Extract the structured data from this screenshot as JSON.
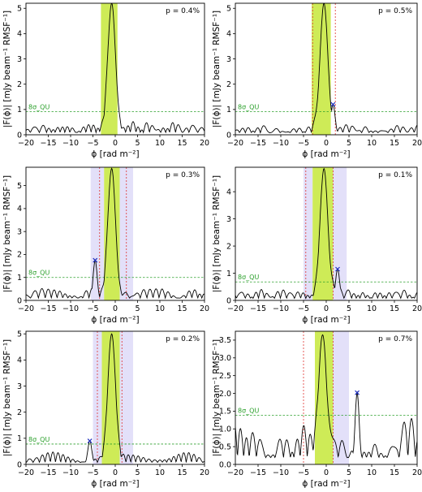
{
  "chart_data": [
    {
      "type": "line",
      "xlabel": "ϕ [rad m⁻²]",
      "ylabel": "|F(ϕ)| [mJy beam⁻¹ RMSF⁻¹]",
      "xlim": [
        -20,
        20
      ],
      "ylim": [
        0,
        5.2
      ],
      "x_ticks": [
        "−20",
        "−15",
        "−10",
        "−5",
        "0",
        "5",
        "10",
        "15",
        "20"
      ],
      "y_ticks": [
        "0",
        "1",
        "2",
        "3",
        "4",
        "5"
      ],
      "y_tick_values": [
        0,
        1,
        2,
        3,
        4,
        5
      ],
      "annotation": "p = 0.4%",
      "threshold_label": "8σ_QU",
      "threshold": 0.92,
      "peak": {
        "x": -0.8,
        "y": 5.2,
        "width": 0.9
      },
      "green_band": [
        -3.2,
        0.5
      ],
      "purple_bands": [],
      "red_lines": [],
      "markers": [],
      "noise_level": 0.35,
      "seed": 3
    },
    {
      "type": "line",
      "xlabel": "ϕ [rad m⁻²]",
      "ylabel": "|F(ϕ)| [mJy beam⁻¹ RMSF⁻¹]",
      "xlim": [
        -20,
        20
      ],
      "ylim": [
        0,
        5.2
      ],
      "x_ticks": [
        "−20",
        "−15",
        "−10",
        "−5",
        "0",
        "5",
        "10",
        "15",
        "20"
      ],
      "y_ticks": [
        "0",
        "1",
        "2",
        "3",
        "4",
        "5"
      ],
      "y_tick_values": [
        0,
        1,
        2,
        3,
        4,
        5
      ],
      "annotation": "p = 0.5%",
      "threshold_label": "8σ_QU",
      "threshold": 0.92,
      "peak": {
        "x": -0.5,
        "y": 5.2,
        "width": 0.9
      },
      "green_band": [
        -3.2,
        1.0
      ],
      "purple_bands": [],
      "red_lines": [
        -3.0,
        2.0
      ],
      "markers": [
        {
          "x": 1.5,
          "y": 1.2
        }
      ],
      "noise_level": 0.32,
      "seed": 7
    },
    {
      "type": "line",
      "xlabel": "ϕ [rad m⁻²]",
      "ylabel": "|F(ϕ)| [mJy beam⁻¹ RMSF⁻¹]",
      "xlim": [
        -20,
        20
      ],
      "ylim": [
        0,
        5.8
      ],
      "x_ticks": [
        "−20",
        "−15",
        "−10",
        "−5",
        "0",
        "5",
        "10",
        "15",
        "20"
      ],
      "y_ticks": [
        "0",
        "1",
        "2",
        "3",
        "4",
        "5"
      ],
      "y_tick_values": [
        0,
        1,
        2,
        3,
        4,
        5
      ],
      "annotation": "p = 0.3%",
      "threshold_label": "8σ_QU",
      "threshold": 1.0,
      "peak": {
        "x": -0.8,
        "y": 5.75,
        "width": 0.9
      },
      "green_band": [
        -2.5,
        1.0
      ],
      "purple_bands": [
        [
          -5.5,
          -2.5
        ],
        [
          1.0,
          4.0
        ]
      ],
      "red_lines": [
        -3.5,
        2.5
      ],
      "markers": [
        {
          "x": -4.5,
          "y": 1.75
        }
      ],
      "noise_level": 0.4,
      "seed": 11
    },
    {
      "type": "line",
      "xlabel": "ϕ [rad m⁻²]",
      "ylabel": "|F(ϕ)| [mJy beam⁻¹ RMSF⁻¹]",
      "xlim": [
        -20,
        20
      ],
      "ylim": [
        0,
        4.9
      ],
      "x_ticks": [
        "−20",
        "−15",
        "−10",
        "−5",
        "0",
        "5",
        "10",
        "15",
        "20"
      ],
      "y_ticks": [
        "0",
        "1",
        "2",
        "3",
        "4"
      ],
      "y_tick_values": [
        0,
        1,
        2,
        3,
        4
      ],
      "annotation": "p = 0.1%",
      "threshold_label": "8σ_QU",
      "threshold": 0.68,
      "peak": {
        "x": -0.5,
        "y": 4.85,
        "width": 0.9
      },
      "green_band": [
        -3.0,
        1.5
      ],
      "purple_bands": [
        [
          -5.0,
          -3.0
        ],
        [
          1.5,
          4.5
        ]
      ],
      "red_lines": [
        -4.5,
        1.5
      ],
      "markers": [
        {
          "x": 2.5,
          "y": 1.15
        }
      ],
      "noise_level": 0.3,
      "seed": 19
    },
    {
      "type": "line",
      "xlabel": "ϕ [rad m⁻²]",
      "ylabel": "|F(ϕ)| [mJy beam⁻¹ RMSF⁻¹]",
      "xlim": [
        -20,
        20
      ],
      "ylim": [
        0,
        5.1
      ],
      "x_ticks": [
        "−20",
        "−15",
        "−10",
        "−5",
        "0",
        "5",
        "10",
        "15",
        "20"
      ],
      "y_ticks": [
        "0",
        "1",
        "2",
        "3",
        "4",
        "5"
      ],
      "y_tick_values": [
        0,
        1,
        2,
        3,
        4,
        5
      ],
      "annotation": "p = 0.2%",
      "threshold_label": "8σ_QU",
      "threshold": 0.78,
      "peak": {
        "x": -0.8,
        "y": 5.0,
        "width": 0.9
      },
      "green_band": [
        -3.0,
        1.0
      ],
      "purple_bands": [
        [
          -5.0,
          -3.0
        ],
        [
          1.0,
          4.0
        ]
      ],
      "red_lines": [
        -4.0,
        1.5
      ],
      "markers": [
        {
          "x": -5.7,
          "y": 0.9
        }
      ],
      "noise_level": 0.3,
      "seed": 23
    },
    {
      "type": "line",
      "xlabel": "ϕ [rad m⁻²]",
      "ylabel": "|F(ϕ)| [mJy beam⁻¹ RMSF⁻¹]",
      "xlim": [
        -20,
        20
      ],
      "ylim": [
        0,
        3.75
      ],
      "x_ticks": [
        "−20",
        "−15",
        "−10",
        "−5",
        "0",
        "5",
        "10",
        "15",
        "20"
      ],
      "y_ticks": [
        "0.0",
        "0.5",
        "1.0",
        "1.5",
        "2.0",
        "2.5",
        "3.0",
        "3.5"
      ],
      "y_tick_values": [
        0,
        0.5,
        1.0,
        1.5,
        2.0,
        2.5,
        3.0,
        3.5
      ],
      "annotation": "p = 0.7%",
      "threshold_label": "8σ_QU",
      "threshold": 1.38,
      "peak": {
        "x": -0.8,
        "y": 3.65,
        "width": 0.9
      },
      "green_band": [
        -2.5,
        1.5
      ],
      "purple_bands": [
        [
          1.5,
          5.0
        ]
      ],
      "red_lines": [
        -5.0,
        1.5
      ],
      "markers": [
        {
          "x": 6.8,
          "y": 2.02
        }
      ],
      "noise_level": 0.75,
      "seed": 31
    }
  ]
}
